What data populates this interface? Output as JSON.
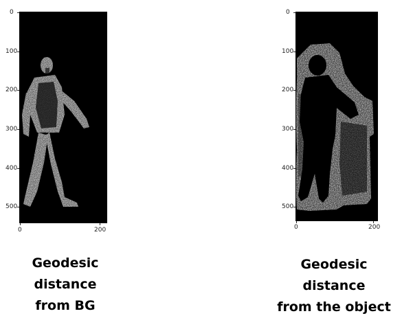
{
  "panels": [
    {
      "id": "left",
      "caption_line1": "Geodesic distance",
      "caption_line2": "from BG",
      "y_ticks": [
        "0",
        "100",
        "200",
        "300",
        "400",
        "500"
      ],
      "x_ticks": [
        "0",
        "200"
      ],
      "image_content": "walking-person-figure-bright-on-black"
    },
    {
      "id": "right",
      "caption_line1": "Geodesic distance",
      "caption_line2": "from the object",
      "y_ticks": [
        "0",
        "100",
        "200",
        "300",
        "400",
        "500"
      ],
      "x_ticks": [
        "0",
        "200"
      ],
      "image_content": "dark-person-silhouette-with-bright-surroundings"
    }
  ],
  "colors": {
    "background": "#000000",
    "highlight": "#bfbfbf",
    "page": "#ffffff"
  }
}
